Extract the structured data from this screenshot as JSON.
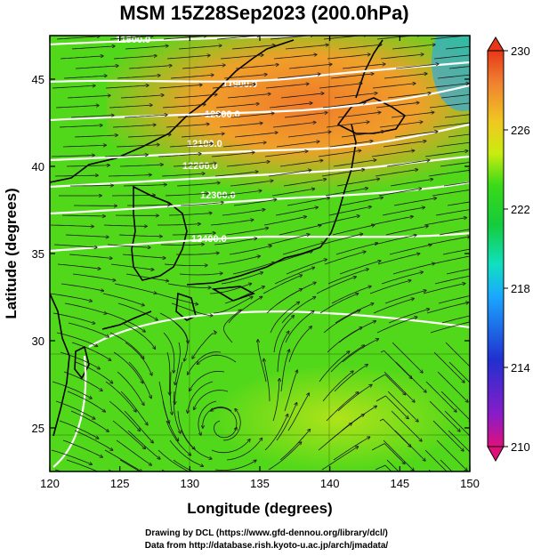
{
  "title": "MSM 15Z28Sep2023 (200.0hPa)",
  "map": {
    "xlabel": "Longitude (degrees)",
    "ylabel": "Latitude  (degrees)",
    "xticks": [
      120,
      125,
      130,
      135,
      140,
      145,
      150
    ],
    "yticks": [
      25,
      30,
      35,
      40,
      45
    ],
    "xlim": [
      120,
      150
    ],
    "ylim": [
      22.5,
      47.5
    ],
    "contour_labels": [
      "11800.0",
      "11900.0",
      "12000.0",
      "12100.0",
      "12200.0",
      "12300.0",
      "12400.0"
    ]
  },
  "colorbar": {
    "ticks": [
      "230",
      "226",
      "222",
      "218",
      "214",
      "210"
    ],
    "min": 210,
    "max": 230,
    "colors": [
      "#e0107a",
      "#8a1cc8",
      "#2030d0",
      "#1aa8ff",
      "#10e0c0",
      "#14cc3c",
      "#3ada18",
      "#c8ec10",
      "#f0c820",
      "#f08030",
      "#e83818"
    ]
  },
  "credits": {
    "line1": "Drawing by DCL (https://www.gfd-dennou.org/library/dcl/)",
    "line2": "Data from http://database.rish.kyoto-u.ac.jp/arch/jmadata/"
  }
}
